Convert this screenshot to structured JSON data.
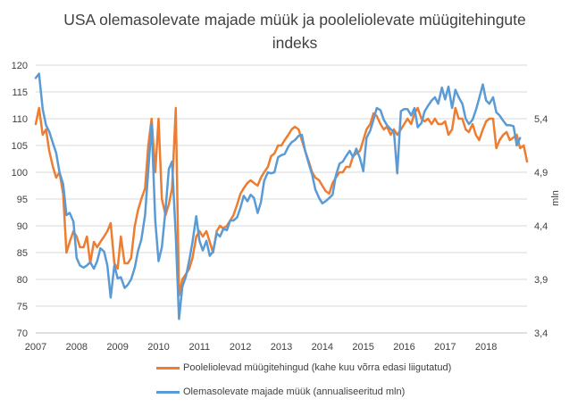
{
  "chart_data": {
    "type": "line",
    "title": "USA olemasolevate majade müük ja pooleliolevate müügitehingute indeks",
    "x_axis": {
      "ticks": [
        "2007",
        "2008",
        "2009",
        "2010",
        "2011",
        "2012",
        "2013",
        "2014",
        "2015",
        "2016",
        "2017",
        "2018"
      ],
      "range": [
        2007,
        2019
      ]
    },
    "y_left": {
      "range": [
        70,
        120
      ],
      "ticks": [
        "70",
        "75",
        "80",
        "85",
        "90",
        "95",
        "100",
        "105",
        "110",
        "115",
        "120"
      ]
    },
    "y_right": {
      "label": "mln",
      "range": [
        3.4,
        5.9
      ],
      "ticks": [
        "3,4",
        "3,9",
        "4,4",
        "4,9",
        "5,4"
      ]
    },
    "grid": "horizontal",
    "legend_position": "bottom",
    "series": [
      {
        "name": "Pooleliolevad müügitehingud (kahe kuu võrra edasi liigutatud)",
        "color": "#ED7D31",
        "axis": "left",
        "points": [
          [
            2007.0,
            109.0
          ],
          [
            2007.08,
            112.0
          ],
          [
            2007.17,
            107.0
          ],
          [
            2007.25,
            108.0
          ],
          [
            2007.33,
            104.0
          ],
          [
            2007.42,
            101.0
          ],
          [
            2007.5,
            99.0
          ],
          [
            2007.58,
            100.0
          ],
          [
            2007.67,
            96.0
          ],
          [
            2007.75,
            85.0
          ],
          [
            2007.83,
            87.0
          ],
          [
            2007.92,
            89.0
          ],
          [
            2008.0,
            88.0
          ],
          [
            2008.08,
            86.0
          ],
          [
            2008.17,
            86.0
          ],
          [
            2008.25,
            88.0
          ],
          [
            2008.33,
            83.0
          ],
          [
            2008.42,
            87.0
          ],
          [
            2008.5,
            86.0
          ],
          [
            2008.58,
            87.0
          ],
          [
            2008.67,
            88.0
          ],
          [
            2008.75,
            89.0
          ],
          [
            2008.83,
            90.5
          ],
          [
            2008.92,
            83.0
          ],
          [
            2009.0,
            82.0
          ],
          [
            2009.08,
            88.0
          ],
          [
            2009.17,
            83.0
          ],
          [
            2009.25,
            83.0
          ],
          [
            2009.33,
            84.0
          ],
          [
            2009.42,
            90.0
          ],
          [
            2009.5,
            93.0
          ],
          [
            2009.58,
            95.0
          ],
          [
            2009.67,
            97.0
          ],
          [
            2009.75,
            105.0
          ],
          [
            2009.83,
            110.0
          ],
          [
            2009.92,
            100.0
          ],
          [
            2010.0,
            110.0
          ],
          [
            2010.08,
            95.0
          ],
          [
            2010.17,
            92.0
          ],
          [
            2010.25,
            94.0
          ],
          [
            2010.33,
            97.0
          ],
          [
            2010.42,
            112.0
          ],
          [
            2010.5,
            77.0
          ],
          [
            2010.58,
            80.0
          ],
          [
            2010.67,
            81.0
          ],
          [
            2010.75,
            82.0
          ],
          [
            2010.83,
            84.0
          ],
          [
            2010.92,
            88.0
          ],
          [
            2011.0,
            89.0
          ],
          [
            2011.08,
            88.0
          ],
          [
            2011.17,
            89.0
          ],
          [
            2011.25,
            87.0
          ],
          [
            2011.33,
            85.0
          ],
          [
            2011.42,
            89.0
          ],
          [
            2011.5,
            90.0
          ],
          [
            2011.58,
            89.5
          ],
          [
            2011.67,
            90.0
          ],
          [
            2011.75,
            91.0
          ],
          [
            2011.83,
            92.0
          ],
          [
            2011.92,
            94.0
          ],
          [
            2012.0,
            96.0
          ],
          [
            2012.08,
            97.0
          ],
          [
            2012.17,
            98.0
          ],
          [
            2012.25,
            98.5
          ],
          [
            2012.33,
            98.0
          ],
          [
            2012.42,
            97.5
          ],
          [
            2012.5,
            99.0
          ],
          [
            2012.58,
            100.0
          ],
          [
            2012.67,
            101.0
          ],
          [
            2012.75,
            103.0
          ],
          [
            2012.83,
            103.5
          ],
          [
            2012.92,
            105.0
          ],
          [
            2013.0,
            105.0
          ],
          [
            2013.08,
            106.0
          ],
          [
            2013.17,
            107.0
          ],
          [
            2013.25,
            108.0
          ],
          [
            2013.33,
            108.5
          ],
          [
            2013.42,
            108.0
          ],
          [
            2013.5,
            106.0
          ],
          [
            2013.58,
            104.0
          ],
          [
            2013.67,
            102.0
          ],
          [
            2013.75,
            100.0
          ],
          [
            2013.83,
            99.0
          ],
          [
            2013.92,
            98.5
          ],
          [
            2014.0,
            97.5
          ],
          [
            2014.08,
            96.5
          ],
          [
            2014.17,
            96.0
          ],
          [
            2014.25,
            98.0
          ],
          [
            2014.33,
            99.0
          ],
          [
            2014.42,
            100.0
          ],
          [
            2014.5,
            100.0
          ],
          [
            2014.58,
            101.0
          ],
          [
            2014.67,
            101.0
          ],
          [
            2014.75,
            103.0
          ],
          [
            2014.83,
            103.5
          ],
          [
            2014.92,
            104.0
          ],
          [
            2015.0,
            106.0
          ],
          [
            2015.08,
            108.0
          ],
          [
            2015.17,
            109.0
          ],
          [
            2015.25,
            111.0
          ],
          [
            2015.33,
            110.5
          ],
          [
            2015.42,
            109.0
          ],
          [
            2015.5,
            108.0
          ],
          [
            2015.58,
            108.5
          ],
          [
            2015.67,
            107.0
          ],
          [
            2015.75,
            108.0
          ],
          [
            2015.83,
            107.0
          ],
          [
            2015.92,
            108.0
          ],
          [
            2016.0,
            109.0
          ],
          [
            2016.08,
            110.0
          ],
          [
            2016.17,
            109.0
          ],
          [
            2016.25,
            111.0
          ],
          [
            2016.33,
            112.0
          ],
          [
            2016.42,
            110.0
          ],
          [
            2016.5,
            109.5
          ],
          [
            2016.58,
            110.0
          ],
          [
            2016.67,
            109.0
          ],
          [
            2016.75,
            110.0
          ],
          [
            2016.83,
            109.0
          ],
          [
            2016.92,
            109.0
          ],
          [
            2017.0,
            109.5
          ],
          [
            2017.08,
            107.0
          ],
          [
            2017.17,
            108.0
          ],
          [
            2017.25,
            112.0
          ],
          [
            2017.33,
            110.0
          ],
          [
            2017.42,
            110.0
          ],
          [
            2017.5,
            108.0
          ],
          [
            2017.58,
            107.5
          ],
          [
            2017.67,
            109.0
          ],
          [
            2017.75,
            107.0
          ],
          [
            2017.83,
            106.0
          ],
          [
            2017.92,
            108.0
          ],
          [
            2018.0,
            109.5
          ],
          [
            2018.08,
            110.0
          ],
          [
            2018.17,
            110.0
          ],
          [
            2018.25,
            104.5
          ],
          [
            2018.33,
            106.0
          ],
          [
            2018.42,
            107.0
          ],
          [
            2018.5,
            107.5
          ],
          [
            2018.58,
            106.0
          ],
          [
            2018.67,
            106.5
          ],
          [
            2018.75,
            107.0
          ],
          [
            2018.83,
            104.5
          ],
          [
            2018.92,
            105.0
          ],
          [
            2019.0,
            102.0
          ]
        ]
      },
      {
        "name": "Olemasolevate majade müük (annualiseeritud mln)",
        "color": "#5B9BD5",
        "axis": "right",
        "points": [
          [
            2007.0,
            5.78
          ],
          [
            2007.08,
            5.82
          ],
          [
            2007.17,
            5.49
          ],
          [
            2007.25,
            5.34
          ],
          [
            2007.33,
            5.28
          ],
          [
            2007.42,
            5.17
          ],
          [
            2007.5,
            5.08
          ],
          [
            2007.58,
            4.9
          ],
          [
            2007.67,
            4.79
          ],
          [
            2007.75,
            4.5
          ],
          [
            2007.83,
            4.52
          ],
          [
            2007.92,
            4.44
          ],
          [
            2008.0,
            4.1
          ],
          [
            2008.08,
            4.03
          ],
          [
            2008.17,
            4.01
          ],
          [
            2008.25,
            4.03
          ],
          [
            2008.33,
            4.06
          ],
          [
            2008.42,
            4.0
          ],
          [
            2008.5,
            4.07
          ],
          [
            2008.58,
            4.19
          ],
          [
            2008.67,
            4.16
          ],
          [
            2008.75,
            4.03
          ],
          [
            2008.83,
            3.73
          ],
          [
            2008.92,
            4.03
          ],
          [
            2009.0,
            3.91
          ],
          [
            2009.08,
            3.92
          ],
          [
            2009.17,
            3.82
          ],
          [
            2009.25,
            3.85
          ],
          [
            2009.33,
            3.9
          ],
          [
            2009.42,
            4.01
          ],
          [
            2009.5,
            4.17
          ],
          [
            2009.58,
            4.27
          ],
          [
            2009.67,
            4.5
          ],
          [
            2009.75,
            4.92
          ],
          [
            2009.83,
            5.35
          ],
          [
            2009.92,
            4.45
          ],
          [
            2010.0,
            4.07
          ],
          [
            2010.08,
            4.2
          ],
          [
            2010.17,
            4.55
          ],
          [
            2010.25,
            4.93
          ],
          [
            2010.33,
            5.0
          ],
          [
            2010.42,
            4.3
          ],
          [
            2010.5,
            3.53
          ],
          [
            2010.58,
            3.83
          ],
          [
            2010.67,
            3.93
          ],
          [
            2010.75,
            4.08
          ],
          [
            2010.83,
            4.25
          ],
          [
            2010.92,
            4.49
          ],
          [
            2011.0,
            4.26
          ],
          [
            2011.08,
            4.17
          ],
          [
            2011.17,
            4.26
          ],
          [
            2011.25,
            4.12
          ],
          [
            2011.33,
            4.16
          ],
          [
            2011.42,
            4.33
          ],
          [
            2011.5,
            4.3
          ],
          [
            2011.58,
            4.37
          ],
          [
            2011.67,
            4.36
          ],
          [
            2011.75,
            4.45
          ],
          [
            2011.83,
            4.45
          ],
          [
            2011.92,
            4.48
          ],
          [
            2012.0,
            4.57
          ],
          [
            2012.08,
            4.68
          ],
          [
            2012.17,
            4.63
          ],
          [
            2012.25,
            4.69
          ],
          [
            2012.33,
            4.66
          ],
          [
            2012.42,
            4.52
          ],
          [
            2012.5,
            4.62
          ],
          [
            2012.58,
            4.82
          ],
          [
            2012.67,
            4.9
          ],
          [
            2012.75,
            4.89
          ],
          [
            2012.83,
            4.9
          ],
          [
            2012.92,
            5.04
          ],
          [
            2013.0,
            5.06
          ],
          [
            2013.08,
            5.07
          ],
          [
            2013.17,
            5.14
          ],
          [
            2013.25,
            5.18
          ],
          [
            2013.33,
            5.2
          ],
          [
            2013.42,
            5.24
          ],
          [
            2013.5,
            5.25
          ],
          [
            2013.58,
            5.1
          ],
          [
            2013.67,
            4.98
          ],
          [
            2013.75,
            4.88
          ],
          [
            2013.83,
            4.74
          ],
          [
            2013.92,
            4.66
          ],
          [
            2014.0,
            4.61
          ],
          [
            2014.08,
            4.63
          ],
          [
            2014.17,
            4.66
          ],
          [
            2014.25,
            4.69
          ],
          [
            2014.33,
            4.87
          ],
          [
            2014.42,
            4.98
          ],
          [
            2014.5,
            5.0
          ],
          [
            2014.58,
            5.05
          ],
          [
            2014.67,
            5.1
          ],
          [
            2014.75,
            5.04
          ],
          [
            2014.83,
            5.12
          ],
          [
            2014.92,
            5.03
          ],
          [
            2015.0,
            4.91
          ],
          [
            2015.08,
            5.22
          ],
          [
            2015.17,
            5.29
          ],
          [
            2015.25,
            5.39
          ],
          [
            2015.33,
            5.5
          ],
          [
            2015.42,
            5.48
          ],
          [
            2015.5,
            5.39
          ],
          [
            2015.58,
            5.34
          ],
          [
            2015.67,
            5.3
          ],
          [
            2015.75,
            5.28
          ],
          [
            2015.83,
            4.89
          ],
          [
            2015.92,
            5.47
          ],
          [
            2016.0,
            5.49
          ],
          [
            2016.08,
            5.49
          ],
          [
            2016.17,
            5.43
          ],
          [
            2016.25,
            5.5
          ],
          [
            2016.33,
            5.32
          ],
          [
            2016.42,
            5.36
          ],
          [
            2016.5,
            5.47
          ],
          [
            2016.58,
            5.52
          ],
          [
            2016.67,
            5.57
          ],
          [
            2016.75,
            5.6
          ],
          [
            2016.83,
            5.54
          ],
          [
            2016.92,
            5.69
          ],
          [
            2017.0,
            5.58
          ],
          [
            2017.08,
            5.7
          ],
          [
            2017.17,
            5.5
          ],
          [
            2017.25,
            5.67
          ],
          [
            2017.33,
            5.6
          ],
          [
            2017.42,
            5.54
          ],
          [
            2017.5,
            5.4
          ],
          [
            2017.58,
            5.35
          ],
          [
            2017.67,
            5.39
          ],
          [
            2017.75,
            5.48
          ],
          [
            2017.83,
            5.59
          ],
          [
            2017.92,
            5.72
          ],
          [
            2018.0,
            5.57
          ],
          [
            2018.08,
            5.54
          ],
          [
            2018.17,
            5.6
          ],
          [
            2018.25,
            5.46
          ],
          [
            2018.33,
            5.43
          ],
          [
            2018.42,
            5.38
          ],
          [
            2018.5,
            5.34
          ],
          [
            2018.58,
            5.34
          ],
          [
            2018.67,
            5.33
          ],
          [
            2018.75,
            5.15
          ],
          [
            2018.83,
            5.22
          ]
        ]
      }
    ]
  }
}
